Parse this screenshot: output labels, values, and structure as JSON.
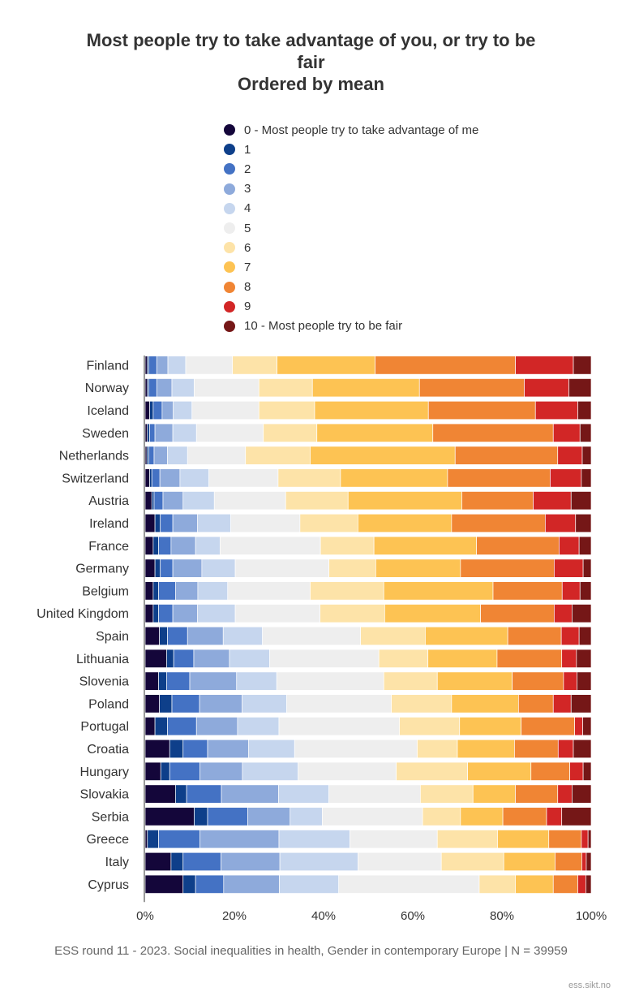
{
  "chart_data": {
    "type": "bar",
    "orientation": "horizontal",
    "stacked": "percent",
    "title": [
      "Most people try to take advantage of you, or try to be",
      "fair",
      "Ordered by mean"
    ],
    "legend": {
      "placement": "top",
      "entries": [
        {
          "name": "0 - Most people try to take advantage of me",
          "color": "#14063a"
        },
        {
          "name": "1",
          "color": "#0e3f8a"
        },
        {
          "name": "2",
          "color": "#4472c4"
        },
        {
          "name": "3",
          "color": "#8eaadb"
        },
        {
          "name": "4",
          "color": "#c6d6ee"
        },
        {
          "name": "5",
          "color": "#eeeeee"
        },
        {
          "name": "6",
          "color": "#fde3a8"
        },
        {
          "name": "7",
          "color": "#fdc353"
        },
        {
          "name": "8",
          "color": "#f08534"
        },
        {
          "name": "9",
          "color": "#d22626"
        },
        {
          "name": "10 - Most people try to be fair",
          "color": "#751717"
        }
      ]
    },
    "categories": [
      "Finland",
      "Norway",
      "Iceland",
      "Sweden",
      "Netherlands",
      "Switzerland",
      "Austria",
      "Ireland",
      "France",
      "Germany",
      "Belgium",
      "United Kingdom",
      "Spain",
      "Lithuania",
      "Slovenia",
      "Poland",
      "Portugal",
      "Croatia",
      "Hungary",
      "Slovakia",
      "Serbia",
      "Greece",
      "Italy",
      "Cyprus"
    ],
    "values": [
      [
        0.5,
        0.3,
        1.8,
        2.5,
        4.0,
        10.5,
        10.0,
        22.0,
        31.5,
        13.0,
        4.0
      ],
      [
        0.5,
        0.3,
        1.8,
        3.4,
        5.0,
        14.5,
        12.0,
        24.0,
        23.5,
        10.0,
        5.0
      ],
      [
        1.0,
        0.8,
        2.0,
        2.5,
        4.2,
        15.0,
        12.5,
        25.5,
        24.0,
        9.5,
        3.0
      ],
      [
        0.5,
        0.5,
        1.2,
        4.0,
        5.3,
        15.0,
        12.0,
        26.0,
        27.0,
        6.0,
        2.5
      ],
      [
        0.4,
        0.4,
        1.2,
        3.0,
        4.5,
        13.0,
        14.5,
        32.5,
        23.0,
        5.5,
        2.0
      ],
      [
        1.0,
        0.5,
        1.8,
        4.5,
        6.5,
        15.5,
        14.0,
        24.0,
        23.0,
        7.0,
        2.2
      ],
      [
        1.5,
        0.5,
        2.0,
        4.5,
        7.0,
        16.0,
        14.0,
        25.5,
        16.0,
        8.5,
        4.5
      ],
      [
        2.2,
        1.2,
        2.8,
        5.5,
        7.5,
        15.5,
        13.0,
        21.0,
        21.0,
        6.8,
        3.5
      ],
      [
        1.8,
        1.2,
        2.8,
        5.5,
        5.5,
        22.5,
        12.0,
        23.0,
        18.5,
        4.5,
        2.7
      ],
      [
        2.2,
        1.2,
        2.8,
        6.5,
        7.5,
        21.0,
        10.5,
        19.0,
        21.0,
        6.5,
        1.8
      ],
      [
        1.8,
        1.2,
        3.8,
        5.0,
        6.7,
        18.5,
        16.5,
        24.5,
        15.5,
        4.0,
        2.5
      ],
      [
        1.8,
        1.2,
        3.2,
        5.5,
        8.5,
        19.0,
        14.5,
        21.5,
        16.5,
        4.0,
        4.3
      ],
      [
        3.2,
        1.8,
        4.5,
        8.0,
        8.8,
        22.0,
        14.5,
        18.5,
        12.0,
        4.0,
        2.7
      ],
      [
        4.8,
        1.6,
        4.5,
        8.0,
        9.0,
        24.5,
        11.0,
        15.5,
        14.5,
        3.3,
        3.3
      ],
      [
        3.0,
        1.8,
        5.2,
        10.5,
        9.0,
        24.0,
        12.0,
        16.8,
        11.5,
        3.0,
        3.2
      ],
      [
        3.2,
        2.8,
        6.2,
        9.5,
        10.0,
        23.5,
        13.5,
        15.0,
        7.8,
        4.0,
        4.5
      ],
      [
        2.2,
        2.8,
        6.5,
        9.2,
        9.3,
        27.0,
        13.5,
        13.8,
        12.0,
        1.8,
        1.9
      ],
      [
        5.5,
        3.0,
        5.5,
        9.2,
        10.3,
        27.5,
        9.0,
        12.8,
        9.8,
        3.4,
        4.0
      ],
      [
        3.5,
        2.0,
        6.8,
        9.5,
        12.5,
        22.0,
        16.0,
        14.2,
        8.7,
        3.0,
        1.8
      ],
      [
        6.8,
        2.5,
        7.8,
        12.8,
        11.3,
        20.5,
        11.8,
        9.5,
        9.5,
        3.2,
        4.3
      ],
      [
        11.0,
        3.0,
        9.0,
        9.5,
        7.2,
        22.5,
        8.5,
        9.5,
        9.8,
        3.4,
        6.6
      ],
      [
        0.5,
        2.5,
        9.3,
        17.7,
        15.9,
        19.6,
        13.5,
        11.5,
        7.3,
        1.5,
        0.7
      ],
      [
        5.8,
        2.7,
        8.5,
        13.2,
        17.5,
        18.7,
        14.0,
        11.5,
        6.0,
        1.0,
        1.1
      ],
      [
        8.5,
        2.8,
        6.3,
        12.5,
        13.3,
        31.5,
        8.1,
        8.5,
        5.5,
        1.8,
        1.2
      ]
    ],
    "series_names": [
      "0",
      "1",
      "2",
      "3",
      "4",
      "5",
      "6",
      "7",
      "8",
      "9",
      "10"
    ],
    "xlabel": "",
    "ylabel": "",
    "xlim": [
      0,
      100
    ],
    "xticks": [
      0,
      20,
      40,
      60,
      80,
      100
    ],
    "xtick_labels": [
      "0%",
      "20%",
      "40%",
      "60%",
      "80%",
      "100%"
    ],
    "grid": false
  },
  "caption": "ESS round 11 - 2023. Social inequalities in health, Gender in contemporary Europe | N = 39959",
  "credit": "ess.sikt.no"
}
